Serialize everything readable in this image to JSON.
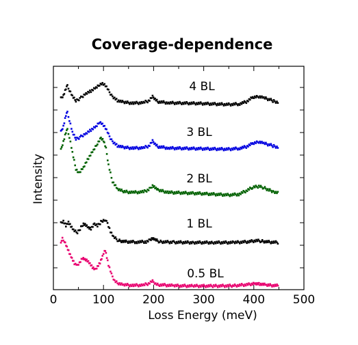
{
  "chart_data": {
    "type": "scatter",
    "title": "Coverage-dependence",
    "xlabel": "Loss Energy (meV)",
    "ylabel": "Intensity",
    "xlim": [
      0,
      500
    ],
    "xticks": [
      0,
      100,
      200,
      300,
      400,
      500
    ],
    "grid": false,
    "y_tick_labels": false,
    "series": [
      {
        "name": "4 BL",
        "color": "#000000",
        "points": [
          [
            15,
            0.32
          ],
          [
            20,
            0.45
          ],
          [
            25,
            0.7
          ],
          [
            28,
            0.8
          ],
          [
            32,
            0.62
          ],
          [
            38,
            0.4
          ],
          [
            45,
            0.22
          ],
          [
            55,
            0.35
          ],
          [
            65,
            0.52
          ],
          [
            75,
            0.6
          ],
          [
            85,
            0.72
          ],
          [
            92,
            0.82
          ],
          [
            98,
            0.86
          ],
          [
            104,
            0.78
          ],
          [
            110,
            0.6
          ],
          [
            118,
            0.4
          ],
          [
            128,
            0.25
          ],
          [
            140,
            0.18
          ],
          [
            160,
            0.15
          ],
          [
            180,
            0.17
          ],
          [
            192,
            0.25
          ],
          [
            198,
            0.38
          ],
          [
            203,
            0.32
          ],
          [
            210,
            0.2
          ],
          [
            230,
            0.16
          ],
          [
            260,
            0.15
          ],
          [
            290,
            0.14
          ],
          [
            320,
            0.12
          ],
          [
            350,
            0.1
          ],
          [
            370,
            0.12
          ],
          [
            385,
            0.2
          ],
          [
            398,
            0.36
          ],
          [
            410,
            0.38
          ],
          [
            420,
            0.34
          ],
          [
            432,
            0.28
          ],
          [
            440,
            0.22
          ],
          [
            450,
            0.18
          ]
        ]
      },
      {
        "name": "3 BL",
        "color": "#0000e0",
        "points": [
          [
            15,
            0.72
          ],
          [
            20,
            0.95
          ],
          [
            25,
            1.35
          ],
          [
            28,
            1.45
          ],
          [
            32,
            1.15
          ],
          [
            38,
            0.7
          ],
          [
            45,
            0.45
          ],
          [
            55,
            0.55
          ],
          [
            65,
            0.68
          ],
          [
            75,
            0.8
          ],
          [
            85,
            0.92
          ],
          [
            92,
            1.08
          ],
          [
            98,
            1.0
          ],
          [
            104,
            0.85
          ],
          [
            110,
            0.62
          ],
          [
            118,
            0.38
          ],
          [
            128,
            0.22
          ],
          [
            140,
            0.15
          ],
          [
            160,
            0.13
          ],
          [
            180,
            0.14
          ],
          [
            192,
            0.22
          ],
          [
            198,
            0.38
          ],
          [
            203,
            0.3
          ],
          [
            210,
            0.18
          ],
          [
            230,
            0.13
          ],
          [
            260,
            0.12
          ],
          [
            290,
            0.11
          ],
          [
            320,
            0.1
          ],
          [
            350,
            0.09
          ],
          [
            370,
            0.12
          ],
          [
            385,
            0.18
          ],
          [
            398,
            0.3
          ],
          [
            410,
            0.35
          ],
          [
            420,
            0.3
          ],
          [
            432,
            0.25
          ],
          [
            440,
            0.2
          ],
          [
            450,
            0.16
          ]
        ]
      },
      {
        "name": "2 BL",
        "color": "#006000",
        "points": [
          [
            15,
            1.85
          ],
          [
            20,
            2.2
          ],
          [
            25,
            2.55
          ],
          [
            28,
            2.65
          ],
          [
            32,
            2.35
          ],
          [
            38,
            1.75
          ],
          [
            45,
            1.1
          ],
          [
            50,
            0.95
          ],
          [
            60,
            1.2
          ],
          [
            70,
            1.55
          ],
          [
            80,
            1.85
          ],
          [
            88,
            2.1
          ],
          [
            95,
            2.3
          ],
          [
            100,
            2.2
          ],
          [
            105,
            1.9
          ],
          [
            110,
            1.3
          ],
          [
            118,
            0.65
          ],
          [
            128,
            0.35
          ],
          [
            140,
            0.25
          ],
          [
            160,
            0.22
          ],
          [
            180,
            0.24
          ],
          [
            192,
            0.35
          ],
          [
            198,
            0.5
          ],
          [
            203,
            0.42
          ],
          [
            210,
            0.3
          ],
          [
            230,
            0.22
          ],
          [
            260,
            0.2
          ],
          [
            290,
            0.18
          ],
          [
            320,
            0.15
          ],
          [
            350,
            0.12
          ],
          [
            370,
            0.15
          ],
          [
            385,
            0.28
          ],
          [
            398,
            0.42
          ],
          [
            410,
            0.45
          ],
          [
            420,
            0.4
          ],
          [
            432,
            0.3
          ],
          [
            440,
            0.25
          ],
          [
            450,
            0.2
          ]
        ]
      },
      {
        "name": "1 BL",
        "color": "#000000",
        "points": [
          [
            15,
            0.75
          ],
          [
            20,
            0.85
          ],
          [
            25,
            0.68
          ],
          [
            30,
            0.8
          ],
          [
            35,
            0.65
          ],
          [
            40,
            0.5
          ],
          [
            48,
            0.4
          ],
          [
            55,
            0.6
          ],
          [
            60,
            0.75
          ],
          [
            65,
            0.7
          ],
          [
            70,
            0.6
          ],
          [
            75,
            0.55
          ],
          [
            82,
            0.72
          ],
          [
            88,
            0.65
          ],
          [
            95,
            0.8
          ],
          [
            100,
            0.88
          ],
          [
            104,
            0.9
          ],
          [
            108,
            0.75
          ],
          [
            114,
            0.45
          ],
          [
            120,
            0.25
          ],
          [
            130,
            0.12
          ],
          [
            145,
            0.08
          ],
          [
            165,
            0.07
          ],
          [
            185,
            0.08
          ],
          [
            193,
            0.15
          ],
          [
            198,
            0.2
          ],
          [
            203,
            0.15
          ],
          [
            212,
            0.08
          ],
          [
            240,
            0.06
          ],
          [
            280,
            0.05
          ],
          [
            320,
            0.05
          ],
          [
            360,
            0.05
          ],
          [
            390,
            0.08
          ],
          [
            405,
            0.12
          ],
          [
            415,
            0.1
          ],
          [
            430,
            0.07
          ],
          [
            450,
            0.05
          ]
        ]
      },
      {
        "name": "0.5 BL",
        "color": "#e8006e",
        "points": [
          [
            15,
            1.4
          ],
          [
            18,
            1.6
          ],
          [
            22,
            1.5
          ],
          [
            27,
            1.3
          ],
          [
            32,
            1.1
          ],
          [
            37,
            0.92
          ],
          [
            42,
            0.75
          ],
          [
            46,
            0.68
          ],
          [
            52,
            0.8
          ],
          [
            58,
            0.95
          ],
          [
            63,
            0.9
          ],
          [
            68,
            0.85
          ],
          [
            73,
            0.75
          ],
          [
            78,
            0.62
          ],
          [
            83,
            0.55
          ],
          [
            88,
            0.68
          ],
          [
            93,
            0.8
          ],
          [
            98,
            1.0
          ],
          [
            102,
            1.2
          ],
          [
            105,
            1.08
          ],
          [
            110,
            0.7
          ],
          [
            116,
            0.4
          ],
          [
            122,
            0.22
          ],
          [
            130,
            0.12
          ],
          [
            140,
            0.07
          ],
          [
            160,
            0.05
          ],
          [
            180,
            0.06
          ],
          [
            192,
            0.12
          ],
          [
            198,
            0.18
          ],
          [
            204,
            0.12
          ],
          [
            212,
            0.07
          ],
          [
            240,
            0.04
          ],
          [
            280,
            0.03
          ],
          [
            320,
            0.03
          ],
          [
            360,
            0.04
          ],
          [
            390,
            0.08
          ],
          [
            403,
            0.12
          ],
          [
            412,
            0.1
          ],
          [
            425,
            0.06
          ],
          [
            450,
            0.04
          ]
        ]
      }
    ]
  }
}
